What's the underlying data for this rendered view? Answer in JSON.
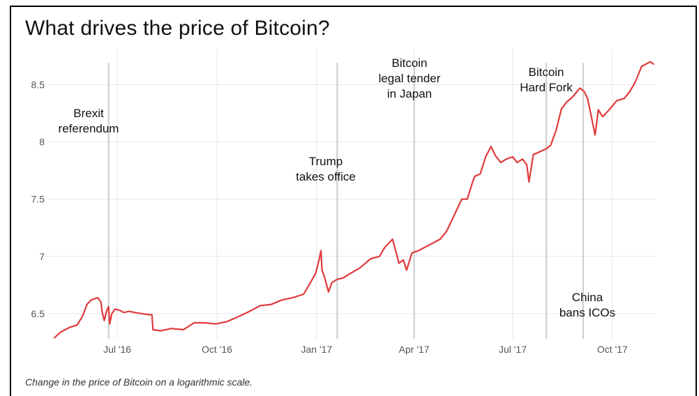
{
  "title": "What drives the price of Bitcoin?",
  "caption": "Change in the price of Bitcoin on a logarithmic scale.",
  "colors": {
    "line": "#e03a3a",
    "event": "#cfcfcf",
    "grid": "#e6e6e6"
  },
  "chart_data": {
    "type": "line",
    "title": "What drives the price of Bitcoin?",
    "caption": "Change in the price of Bitcoin on a logarithmic scale.",
    "xlabel": "",
    "ylabel": "",
    "xlim": [
      "2016-05-04",
      "2017-11-10"
    ],
    "ylim": [
      6.28,
      8.74
    ],
    "yticks": [
      6.5,
      7,
      7.5,
      8,
      8.5
    ],
    "ytick_labels": [
      "6.5",
      "7",
      "7.5",
      "8",
      "8.5"
    ],
    "xticks": [
      "2016-07-01",
      "2016-10-01",
      "2017-01-01",
      "2017-04-01",
      "2017-07-01",
      "2017-10-01"
    ],
    "xtick_labels": [
      "Jul '16",
      "Oct '16",
      "Jan '17",
      "Apr '17",
      "Jul '17",
      "Oct '17"
    ],
    "grid": true,
    "legend": "none",
    "events": [
      {
        "date": "2016-06-23",
        "label": [
          "Brexit",
          "referendum"
        ]
      },
      {
        "date": "2017-01-20",
        "label": [
          "Trump",
          "takes office"
        ]
      },
      {
        "date": "2017-04-01",
        "label": [
          "Bitcoin",
          "legal tender",
          "in Japan"
        ]
      },
      {
        "date": "2017-08-01",
        "label": [
          "Bitcoin",
          "Hard Fork"
        ]
      },
      {
        "date": "2017-09-04",
        "label": [
          "China",
          "bans ICOs"
        ]
      }
    ],
    "series": [
      {
        "x": [
          "2016-05-04",
          "2016-05-10",
          "2016-05-18",
          "2016-05-25",
          "2016-05-30",
          "2016-06-03",
          "2016-06-07",
          "2016-06-10",
          "2016-06-13",
          "2016-06-16",
          "2016-06-17",
          "2016-06-19",
          "2016-06-21",
          "2016-06-23",
          "2016-06-24",
          "2016-06-26",
          "2016-06-29",
          "2016-07-03",
          "2016-07-07",
          "2016-07-12",
          "2016-07-17",
          "2016-07-24",
          "2016-07-31",
          "2016-08-02",
          "2016-08-03",
          "2016-08-10",
          "2016-08-20",
          "2016-08-31",
          "2016-09-10",
          "2016-09-20",
          "2016-09-30",
          "2016-10-10",
          "2016-10-20",
          "2016-10-31",
          "2016-11-10",
          "2016-11-20",
          "2016-11-30",
          "2016-12-10",
          "2016-12-20",
          "2016-12-25",
          "2016-12-31",
          "2017-01-03",
          "2017-01-05",
          "2017-01-06",
          "2017-01-08",
          "2017-01-10",
          "2017-01-12",
          "2017-01-15",
          "2017-01-20",
          "2017-01-25",
          "2017-02-01",
          "2017-02-10",
          "2017-02-20",
          "2017-02-28",
          "2017-03-05",
          "2017-03-10",
          "2017-03-12",
          "2017-03-15",
          "2017-03-18",
          "2017-03-22",
          "2017-03-25",
          "2017-03-30",
          "2017-04-05",
          "2017-04-15",
          "2017-04-25",
          "2017-05-01",
          "2017-05-10",
          "2017-05-15",
          "2017-05-20",
          "2017-05-25",
          "2017-05-27",
          "2017-06-01",
          "2017-06-06",
          "2017-06-11",
          "2017-06-15",
          "2017-06-20",
          "2017-06-25",
          "2017-07-01",
          "2017-07-05",
          "2017-07-10",
          "2017-07-14",
          "2017-07-16",
          "2017-07-20",
          "2017-07-25",
          "2017-08-01",
          "2017-08-05",
          "2017-08-10",
          "2017-08-15",
          "2017-08-20",
          "2017-08-25",
          "2017-09-01",
          "2017-09-05",
          "2017-09-08",
          "2017-09-12",
          "2017-09-15",
          "2017-09-18",
          "2017-09-22",
          "2017-09-28",
          "2017-10-05",
          "2017-10-12",
          "2017-10-17",
          "2017-10-22",
          "2017-10-28",
          "2017-11-01",
          "2017-11-05",
          "2017-11-08"
        ],
        "values": [
          6.29,
          6.34,
          6.38,
          6.4,
          6.48,
          6.58,
          6.62,
          6.63,
          6.64,
          6.6,
          6.52,
          6.44,
          6.52,
          6.56,
          6.41,
          6.5,
          6.54,
          6.53,
          6.51,
          6.52,
          6.51,
          6.5,
          6.49,
          6.49,
          6.36,
          6.35,
          6.37,
          6.36,
          6.42,
          6.42,
          6.41,
          6.43,
          6.47,
          6.52,
          6.57,
          6.58,
          6.62,
          6.64,
          6.67,
          6.75,
          6.85,
          6.96,
          7.05,
          6.88,
          6.83,
          6.76,
          6.69,
          6.77,
          6.8,
          6.81,
          6.85,
          6.9,
          6.98,
          7.0,
          7.08,
          7.13,
          7.15,
          7.05,
          6.94,
          6.97,
          6.88,
          7.03,
          7.05,
          7.1,
          7.15,
          7.22,
          7.4,
          7.5,
          7.5,
          7.65,
          7.7,
          7.72,
          7.87,
          7.96,
          7.88,
          7.82,
          7.85,
          7.87,
          7.82,
          7.85,
          7.8,
          7.65,
          7.89,
          7.91,
          7.94,
          7.97,
          8.1,
          8.29,
          8.35,
          8.39,
          8.47,
          8.44,
          8.38,
          8.2,
          8.06,
          8.28,
          8.22,
          8.28,
          8.36,
          8.38,
          8.44,
          8.52,
          8.66,
          8.68,
          8.7,
          8.68
        ]
      }
    ]
  }
}
